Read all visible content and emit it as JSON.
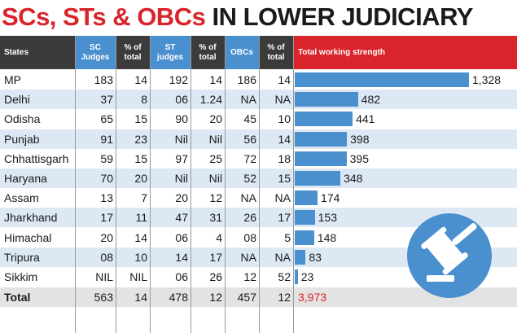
{
  "title": {
    "part1": "SCs, STs & OBCs",
    "part2": "IN LOWER JUDICIARY"
  },
  "columns": {
    "states": "States",
    "sc": "SC Judges",
    "sc_pct": "% of total",
    "st": "ST judges",
    "st_pct": "% of total",
    "obc": "OBCs",
    "obc_pct": "% of total",
    "total": "Total working strength"
  },
  "chart_data": {
    "type": "bar",
    "categories": [
      "MP",
      "Delhi",
      "Odisha",
      "Punjab",
      "Chhattisgarh",
      "Haryana",
      "Assam",
      "Jharkhand",
      "Himachal",
      "Tripura",
      "Sikkim"
    ],
    "values": [
      1328,
      482,
      441,
      398,
      395,
      348,
      174,
      153,
      148,
      83,
      23
    ],
    "value_labels": [
      "1,328",
      "482",
      "441",
      "398",
      "395",
      "348",
      "174",
      "153",
      "148",
      "83",
      "23"
    ],
    "title": "Total working strength",
    "xlabel": "",
    "ylabel": "",
    "xlim": [
      0,
      1328
    ],
    "orientation": "horizontal",
    "bar_color": "#4a8fce"
  },
  "rows": [
    {
      "state": "MP",
      "sc": "183",
      "sc_pct": "14",
      "st": "192",
      "st_pct": "14",
      "obc": "186",
      "obc_pct": "14"
    },
    {
      "state": "Delhi",
      "sc": "37",
      "sc_pct": "8",
      "st": "06",
      "st_pct": "1.24",
      "obc": "NA",
      "obc_pct": "NA"
    },
    {
      "state": "Odisha",
      "sc": "65",
      "sc_pct": "15",
      "st": "90",
      "st_pct": "20",
      "obc": "45",
      "obc_pct": "10"
    },
    {
      "state": "Punjab",
      "sc": "91",
      "sc_pct": "23",
      "st": "Nil",
      "st_pct": "Nil",
      "obc": "56",
      "obc_pct": "14"
    },
    {
      "state": "Chhattisgarh",
      "sc": "59",
      "sc_pct": "15",
      "st": "97",
      "st_pct": "25",
      "obc": "72",
      "obc_pct": "18"
    },
    {
      "state": "Haryana",
      "sc": "70",
      "sc_pct": "20",
      "st": "Nil",
      "st_pct": "Nil",
      "obc": "52",
      "obc_pct": "15"
    },
    {
      "state": "Assam",
      "sc": "13",
      "sc_pct": "7",
      "st": "20",
      "st_pct": "12",
      "obc": "NA",
      "obc_pct": "NA"
    },
    {
      "state": "Jharkhand",
      "sc": "17",
      "sc_pct": "11",
      "st": "47",
      "st_pct": "31",
      "obc": "26",
      "obc_pct": "17"
    },
    {
      "state": "Himachal",
      "sc": "20",
      "sc_pct": "14",
      "st": "06",
      "st_pct": "4",
      "obc": "08",
      "obc_pct": "5"
    },
    {
      "state": "Tripura",
      "sc": "08",
      "sc_pct": "10",
      "st": "14",
      "st_pct": "17",
      "obc": "NA",
      "obc_pct": "NA"
    },
    {
      "state": "Sikkim",
      "sc": "NIL",
      "sc_pct": "NIL",
      "st": "06",
      "st_pct": "26",
      "obc": "12",
      "obc_pct": "52"
    }
  ],
  "total_row": {
    "state": "Total",
    "sc": "563",
    "sc_pct": "14",
    "st": "478",
    "st_pct": "12",
    "obc": "457",
    "obc_pct": "12",
    "total": "3,973"
  },
  "colors": {
    "header_dark": "#3b3b3b",
    "header_blue": "#4a8fce",
    "header_red": "#d8242a",
    "title_red": "#d8242a",
    "row_alt": "#dce8f4",
    "total_red": "#d8242a"
  },
  "icons": {
    "decoration": "gavel-icon"
  }
}
